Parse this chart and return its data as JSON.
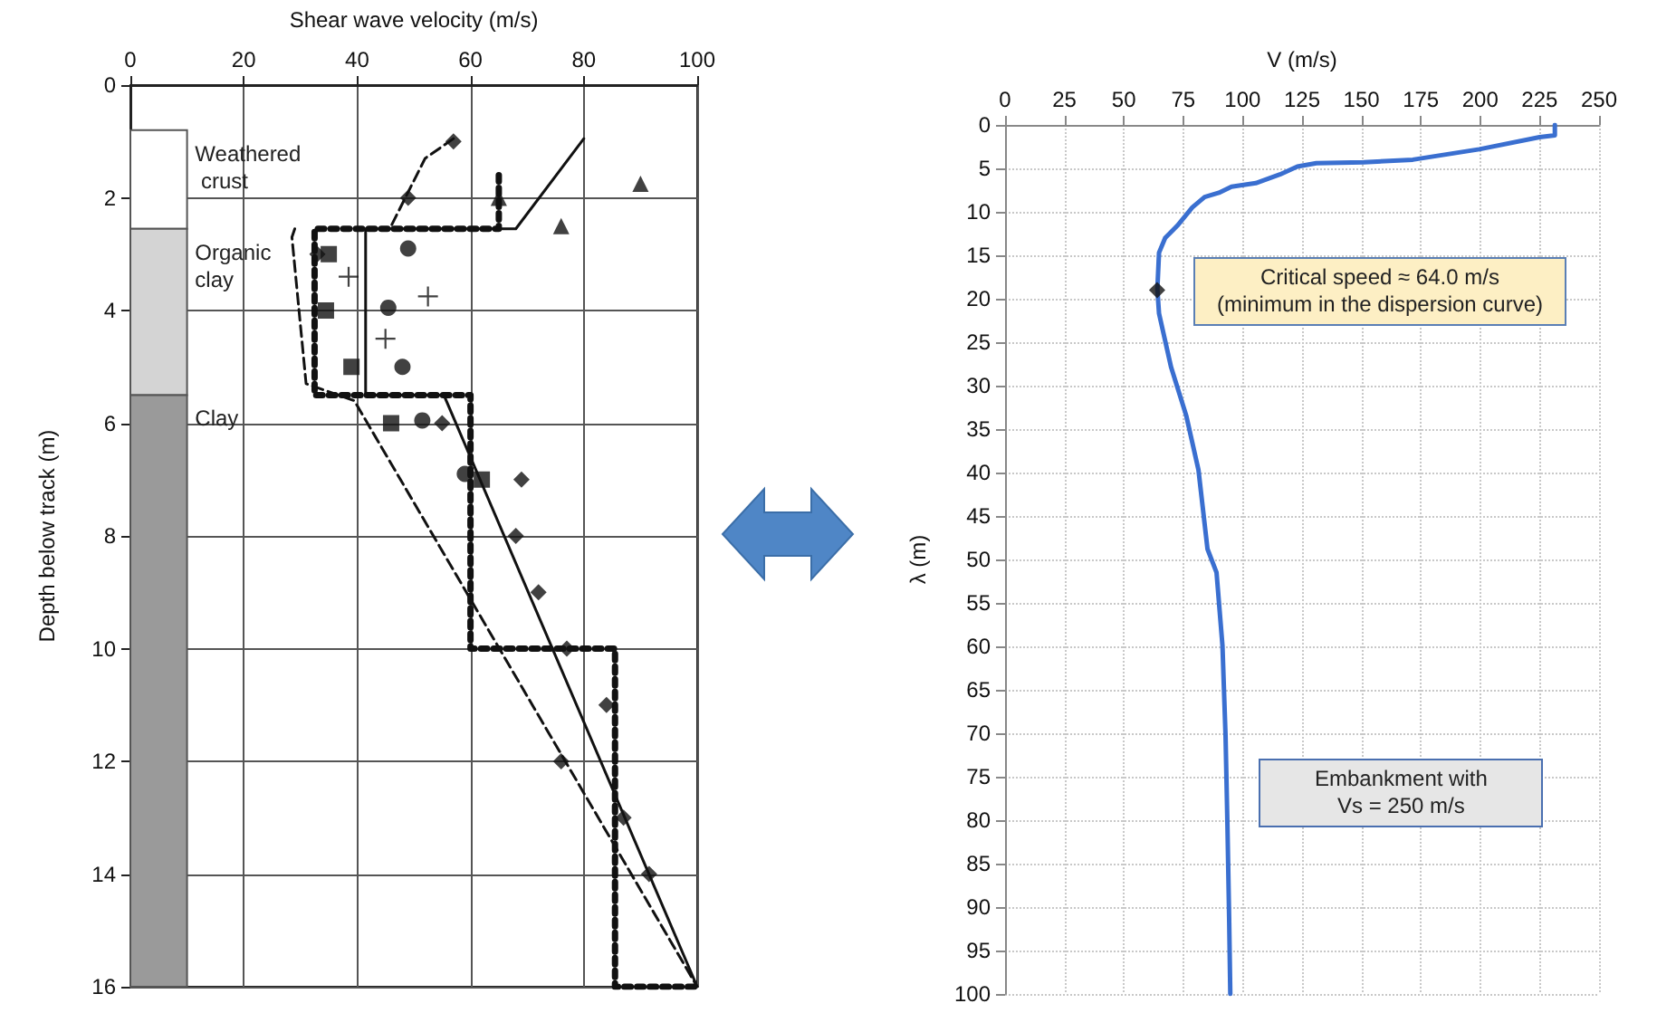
{
  "chart_data": [
    {
      "type": "scatter",
      "xlabel": "Shear wave velocity (m/s)",
      "ylabel": "Depth below track (m)",
      "xlim": [
        0,
        100
      ],
      "xticks": [
        0,
        20,
        40,
        60,
        80,
        100
      ],
      "ylim": [
        16,
        0
      ],
      "yticks": [
        0,
        2,
        4,
        6,
        8,
        10,
        12,
        14,
        16
      ],
      "grid": true,
      "bands": [
        {
          "axis": "y",
          "from": 0.8,
          "to": 2.55,
          "label": "Weathered crust",
          "color": "#ffffff"
        },
        {
          "axis": "y",
          "from": 2.55,
          "to": 5.5,
          "label": "Organic clay",
          "color": "#d4d4d4"
        },
        {
          "axis": "y",
          "from": 5.5,
          "to": 16,
          "label": "Clay",
          "color": "#9a9a9a"
        }
      ],
      "series": [
        {
          "marker": "diamond",
          "color": "#111111",
          "x": [
            57,
            49,
            33,
            55,
            69,
            68,
            72,
            77,
            84,
            76,
            87,
            91.5
          ],
          "values": [
            1,
            2,
            3,
            6,
            7,
            8,
            9,
            10,
            11,
            12,
            13,
            14
          ]
        },
        {
          "marker": "square",
          "color": "#111111",
          "x": [
            35,
            34.5,
            39,
            46,
            62
          ],
          "values": [
            3,
            4,
            5,
            6,
            7
          ]
        },
        {
          "marker": "circle",
          "color": "#111111",
          "x": [
            49,
            45.5,
            48,
            51.5,
            59
          ],
          "values": [
            2.9,
            3.95,
            5,
            5.95,
            6.9
          ]
        },
        {
          "marker": "cross",
          "color": "#111111",
          "x": [
            38.5,
            52.5,
            45
          ],
          "values": [
            3.4,
            3.75,
            4.5
          ]
        },
        {
          "marker": "triangle",
          "color": "#111111",
          "x": [
            90,
            76,
            65
          ],
          "values": [
            1.75,
            2.5,
            2
          ]
        },
        {
          "type": "line",
          "line_style": "solid",
          "color": "#111111",
          "x": [
            80,
            68,
            41.5,
            41.5,
            55.3,
            100
          ],
          "values": [
            0.95,
            2.55,
            2.55,
            5.5,
            5.5,
            16
          ]
        },
        {
          "type": "line",
          "line_style": "dashed",
          "color": "#111111",
          "x": [
            57,
            52,
            48.5,
            46
          ],
          "values": [
            0.95,
            1.3,
            2,
            2.5
          ]
        },
        {
          "type": "line",
          "line_style": "dashed",
          "color": "#111111",
          "x": [
            29,
            28.5,
            31,
            39.5,
            100
          ],
          "values": [
            2.55,
            2.7,
            5.3,
            5.6,
            16
          ]
        },
        {
          "type": "line",
          "line_style": "dotted",
          "color": "#111111",
          "x": [
            65,
            65,
            32.5,
            32.5,
            60,
            60,
            85.5,
            85.5,
            100
          ],
          "values": [
            1.6,
            2.55,
            2.55,
            5.5,
            5.5,
            10,
            10,
            16,
            16
          ]
        }
      ]
    },
    {
      "type": "line",
      "xlabel": "V (m/s)",
      "ylabel": "λ (m)",
      "xlim": [
        0,
        250
      ],
      "xticks": [
        0,
        25,
        50,
        75,
        100,
        125,
        150,
        175,
        200,
        225,
        250
      ],
      "ylim": [
        100,
        0
      ],
      "yticks": [
        0,
        5,
        10,
        15,
        20,
        25,
        30,
        35,
        40,
        45,
        50,
        55,
        60,
        65,
        70,
        75,
        80,
        85,
        90,
        95,
        100
      ],
      "grid": true,
      "annotations": [
        {
          "text": "Critical speed ≈ 64.0 m/s\n(minimum in the dispersion curve)",
          "x": 64,
          "y": 19
        },
        "Embankment with\nVs = 250 m/s"
      ],
      "series": [
        {
          "marker": "none",
          "line_style": "solid",
          "color": "#3a6fd0",
          "x": [
            231.4,
            231.4,
            225,
            199.6,
            171.6,
            151,
            131,
            123,
            115.7,
            105.5,
            95.3,
            90,
            84,
            78.8,
            72.5,
            67.4,
            64.8,
            64.1,
            64.8,
            69.9,
            76.3,
            81.4,
            85.2,
            89,
            91.5,
            92.8,
            93.6,
            94.3,
            94.8
          ],
          "values": [
            0,
            1.2,
            1.4,
            2.8,
            4,
            4.3,
            4.4,
            4.8,
            5.7,
            6.7,
            7.1,
            7.8,
            8.3,
            9.5,
            11.6,
            13,
            14.7,
            18.9,
            21.7,
            27.9,
            33.5,
            39.7,
            48.8,
            51.5,
            59.9,
            70.3,
            80.7,
            91.1,
            100
          ]
        },
        {
          "type": "scatter",
          "marker": "diamond",
          "color": "#111111",
          "x": [
            64
          ],
          "values": [
            19
          ]
        }
      ]
    }
  ]
}
